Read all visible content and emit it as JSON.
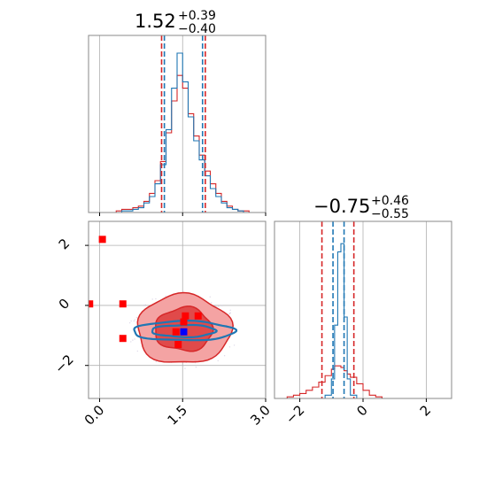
{
  "colors": {
    "red": "#d62728",
    "blue": "#1f77b4",
    "red_marker": "#ff0000",
    "blue_marker": "#0000ff",
    "contour_light": "#f4a3a3",
    "contour_dark": "#e04a4a",
    "grid": "#b0b0b0",
    "frame": "#888888"
  },
  "chart_data": [
    {
      "type": "histogram",
      "panel": "top-left",
      "title_value": "1.52",
      "title_plus": "+0.39",
      "title_minus": "−0.40",
      "xlim": [
        -0.2,
        3.0
      ],
      "grid": true,
      "median": 1.52,
      "quantiles_red": [
        1.12,
        1.91
      ],
      "quantiles_blue": [
        1.17,
        1.86
      ],
      "x": [
        0.0,
        0.1,
        0.2,
        0.3,
        0.4,
        0.5,
        0.6,
        0.7,
        0.8,
        0.9,
        1.0,
        1.1,
        1.2,
        1.3,
        1.4,
        1.5,
        1.6,
        1.7,
        1.8,
        1.9,
        2.0,
        2.1,
        2.2,
        2.3,
        2.4,
        2.5,
        2.6,
        2.7,
        2.8,
        2.9
      ],
      "series": [
        {
          "name": "",
          "color": "red",
          "values": [
            0,
            0,
            0,
            0.01,
            0.02,
            0.02,
            0.03,
            0.04,
            0.07,
            0.12,
            0.2,
            0.32,
            0.5,
            0.7,
            0.86,
            0.78,
            0.62,
            0.48,
            0.36,
            0.26,
            0.18,
            0.12,
            0.07,
            0.04,
            0.02,
            0.01,
            0.01,
            0,
            0,
            0
          ]
        },
        {
          "name": "",
          "color": "blue",
          "values": [
            0,
            0,
            0,
            0,
            0.01,
            0.01,
            0.02,
            0.03,
            0.06,
            0.1,
            0.18,
            0.3,
            0.52,
            0.78,
            1.0,
            0.82,
            0.6,
            0.45,
            0.33,
            0.23,
            0.15,
            0.1,
            0.06,
            0.03,
            0.02,
            0.01,
            0,
            0,
            0,
            0
          ]
        }
      ]
    },
    {
      "type": "histogram",
      "panel": "bottom-right",
      "title_value": "−0.75",
      "title_plus": "+0.46",
      "title_minus": "−0.55",
      "xlim": [
        -2.8,
        2.8
      ],
      "xticks": [
        -2,
        0,
        2
      ],
      "xtick_labels": [
        "−2",
        "0",
        "2"
      ],
      "grid": true,
      "quantiles_red": [
        -1.3,
        -0.29
      ],
      "quantiles_blue": [
        -0.95,
        -0.6
      ],
      "x": [
        -2.8,
        -2.6,
        -2.4,
        -2.2,
        -2.0,
        -1.8,
        -1.6,
        -1.4,
        -1.2,
        -1.0,
        -0.9,
        -0.8,
        -0.7,
        -0.6,
        -0.5,
        -0.4,
        -0.2,
        0.0,
        0.2,
        0.4,
        0.6,
        0.8
      ],
      "series": [
        {
          "name": "",
          "color": "red",
          "values": [
            0,
            0,
            0.01,
            0.02,
            0.03,
            0.05,
            0.07,
            0.1,
            0.14,
            0.18,
            0.2,
            0.2,
            0.19,
            0.17,
            0.15,
            0.13,
            0.09,
            0.05,
            0.02,
            0.01,
            0,
            0
          ]
        },
        {
          "name": "",
          "color": "blue",
          "values": [
            0,
            0,
            0,
            0,
            0,
            0,
            0,
            0,
            0.02,
            0.12,
            0.45,
            0.9,
            0.95,
            0.5,
            0.12,
            0.02,
            0,
            0,
            0,
            0,
            0,
            0
          ]
        }
      ]
    },
    {
      "type": "scatter",
      "panel": "bottom-left",
      "xlim": [
        -0.2,
        3.0
      ],
      "ylim": [
        -3.1,
        2.8
      ],
      "xticks": [
        0.0,
        1.5,
        3.0
      ],
      "xtick_labels": [
        "0.0",
        "1.5",
        "3.0"
      ],
      "yticks": [
        -2,
        0,
        2
      ],
      "ytick_labels": [
        "−2",
        "0",
        "2"
      ],
      "grid": true,
      "contours_red": [
        {
          "level": "outer",
          "cx": 1.52,
          "cy": -0.8,
          "rx": 0.85,
          "ry": 1.15
        },
        {
          "level": "inner",
          "cx": 1.52,
          "cy": -0.8,
          "rx": 0.52,
          "ry": 0.72
        }
      ],
      "contours_blue": [
        {
          "level": "outer",
          "cx": 1.52,
          "cy": -0.85,
          "rx": 0.92,
          "ry": 0.32
        },
        {
          "level": "inner",
          "cx": 1.52,
          "cy": -0.85,
          "rx": 0.58,
          "ry": 0.2
        }
      ],
      "points_red": [
        {
          "x": 0.05,
          "y": 2.2
        },
        {
          "x": -0.18,
          "y": 0.05
        },
        {
          "x": 0.42,
          "y": 0.05
        },
        {
          "x": 0.42,
          "y": -1.1
        },
        {
          "x": 1.55,
          "y": -0.35
        },
        {
          "x": 1.78,
          "y": -0.35
        },
        {
          "x": 1.38,
          "y": -0.88
        },
        {
          "x": 1.52,
          "y": -0.55
        },
        {
          "x": 1.42,
          "y": -1.3
        }
      ],
      "points_blue": [
        {
          "x": 1.52,
          "y": -0.88
        }
      ]
    }
  ]
}
